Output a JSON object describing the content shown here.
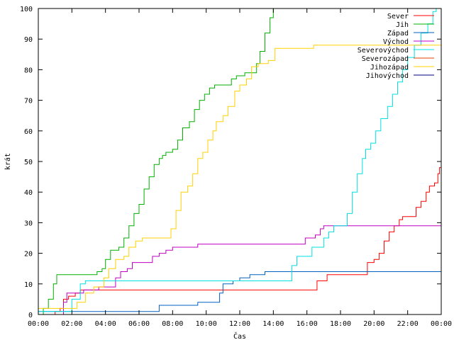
{
  "chart_data": {
    "type": "line",
    "title": "",
    "xlabel": "Čas",
    "ylabel": "krát",
    "xlim": [
      0,
      24
    ],
    "ylim": [
      0,
      100
    ],
    "x_ticks": [
      {
        "value": 0,
        "label": "00:00"
      },
      {
        "value": 2,
        "label": "02:00"
      },
      {
        "value": 4,
        "label": "04:00"
      },
      {
        "value": 6,
        "label": "06:00"
      },
      {
        "value": 8,
        "label": "08:00"
      },
      {
        "value": 10,
        "label": "10:00"
      },
      {
        "value": 12,
        "label": "12:00"
      },
      {
        "value": 14,
        "label": "14:00"
      },
      {
        "value": 16,
        "label": "16:00"
      },
      {
        "value": 18,
        "label": "18:00"
      },
      {
        "value": 20,
        "label": "20:00"
      },
      {
        "value": 22,
        "label": "22:00"
      },
      {
        "value": 24,
        "label": "00:00"
      }
    ],
    "y_ticks": [
      0,
      10,
      20,
      30,
      40,
      50,
      60,
      70,
      80,
      90,
      100
    ],
    "grid": false,
    "legend_position": "top-right",
    "series": [
      {
        "name": "Sever",
        "color": "#ff0000",
        "points": [
          [
            0,
            0
          ],
          [
            0.8,
            0
          ],
          [
            1.0,
            1
          ],
          [
            1.3,
            2
          ],
          [
            1.5,
            5
          ],
          [
            1.8,
            6
          ],
          [
            2.2,
            7
          ],
          [
            2.5,
            8
          ],
          [
            5.0,
            8
          ],
          [
            10.0,
            8
          ],
          [
            14.0,
            8
          ],
          [
            16.0,
            8
          ],
          [
            16.6,
            11
          ],
          [
            17.2,
            13
          ],
          [
            19.0,
            13
          ],
          [
            19.4,
            13
          ],
          [
            19.6,
            17
          ],
          [
            20.0,
            18
          ],
          [
            20.3,
            20
          ],
          [
            20.6,
            24
          ],
          [
            20.9,
            27
          ],
          [
            21.2,
            29
          ],
          [
            21.5,
            31
          ],
          [
            21.7,
            32
          ],
          [
            22.3,
            32
          ],
          [
            22.5,
            35
          ],
          [
            22.8,
            37
          ],
          [
            23.1,
            40
          ],
          [
            23.3,
            42
          ],
          [
            23.6,
            43
          ],
          [
            23.8,
            46
          ],
          [
            23.9,
            48
          ],
          [
            24,
            51
          ]
        ]
      },
      {
        "name": "Jih",
        "color": "#00b000",
        "points": [
          [
            0,
            0
          ],
          [
            0.3,
            2
          ],
          [
            0.6,
            5
          ],
          [
            0.9,
            10
          ],
          [
            1.1,
            13
          ],
          [
            2.0,
            13
          ],
          [
            3.2,
            13
          ],
          [
            3.5,
            14
          ],
          [
            3.8,
            15
          ],
          [
            4.0,
            18
          ],
          [
            4.3,
            21
          ],
          [
            4.8,
            22
          ],
          [
            5.1,
            25
          ],
          [
            5.4,
            29
          ],
          [
            5.7,
            33
          ],
          [
            6.0,
            36
          ],
          [
            6.3,
            41
          ],
          [
            6.6,
            45
          ],
          [
            6.9,
            49
          ],
          [
            7.2,
            51
          ],
          [
            7.4,
            52
          ],
          [
            7.6,
            53
          ],
          [
            8.0,
            54
          ],
          [
            8.3,
            57
          ],
          [
            8.6,
            61
          ],
          [
            9.0,
            63
          ],
          [
            9.3,
            67
          ],
          [
            9.6,
            70
          ],
          [
            9.9,
            72
          ],
          [
            10.2,
            74
          ],
          [
            10.5,
            75
          ],
          [
            11.2,
            75
          ],
          [
            11.5,
            77
          ],
          [
            11.8,
            78
          ],
          [
            12.3,
            79
          ],
          [
            12.8,
            79
          ],
          [
            13.0,
            82
          ],
          [
            13.2,
            86
          ],
          [
            13.5,
            92
          ],
          [
            13.8,
            97
          ],
          [
            14.0,
            100
          ]
        ]
      },
      {
        "name": "Západ",
        "color": "#0060c0",
        "points": [
          [
            0,
            1
          ],
          [
            3.0,
            1
          ],
          [
            6.0,
            1
          ],
          [
            7.1,
            1
          ],
          [
            7.2,
            3
          ],
          [
            8.5,
            3
          ],
          [
            9.5,
            4
          ],
          [
            10.6,
            4
          ],
          [
            10.8,
            7
          ],
          [
            11.0,
            10
          ],
          [
            11.6,
            11
          ],
          [
            12.0,
            12
          ],
          [
            12.6,
            13
          ],
          [
            13.0,
            13
          ],
          [
            13.5,
            14
          ],
          [
            16.0,
            14
          ],
          [
            20.0,
            14
          ],
          [
            24,
            14
          ]
        ]
      },
      {
        "name": "Východ",
        "color": "#c000c0",
        "points": [
          [
            0,
            0
          ],
          [
            1.3,
            0
          ],
          [
            1.5,
            4
          ],
          [
            1.7,
            7
          ],
          [
            2.2,
            7
          ],
          [
            2.7,
            8
          ],
          [
            3.2,
            8
          ],
          [
            3.6,
            9
          ],
          [
            4.1,
            9
          ],
          [
            4.6,
            12
          ],
          [
            4.9,
            14
          ],
          [
            5.3,
            15
          ],
          [
            5.6,
            17
          ],
          [
            6.5,
            17
          ],
          [
            6.8,
            19
          ],
          [
            7.2,
            20
          ],
          [
            7.6,
            21
          ],
          [
            8.0,
            22
          ],
          [
            9.0,
            22
          ],
          [
            9.5,
            23
          ],
          [
            12.0,
            23
          ],
          [
            14.0,
            23
          ],
          [
            15.5,
            23
          ],
          [
            15.9,
            25
          ],
          [
            16.5,
            26
          ],
          [
            16.8,
            28
          ],
          [
            17.0,
            29
          ],
          [
            20.0,
            29
          ],
          [
            24,
            29
          ]
        ]
      },
      {
        "name": "Severovýchod",
        "color": "#00e0e0",
        "points": [
          [
            0,
            1
          ],
          [
            1.5,
            1
          ],
          [
            2.0,
            5
          ],
          [
            2.5,
            10
          ],
          [
            2.8,
            11
          ],
          [
            5.0,
            11
          ],
          [
            10.0,
            11
          ],
          [
            14.8,
            11
          ],
          [
            15.1,
            16
          ],
          [
            15.4,
            19
          ],
          [
            16.0,
            19
          ],
          [
            16.3,
            22
          ],
          [
            16.8,
            22
          ],
          [
            17.0,
            25
          ],
          [
            17.3,
            27
          ],
          [
            17.6,
            29
          ],
          [
            17.8,
            29
          ],
          [
            18.0,
            29
          ],
          [
            18.4,
            33
          ],
          [
            18.7,
            40
          ],
          [
            19.0,
            46
          ],
          [
            19.3,
            51
          ],
          [
            19.5,
            54
          ],
          [
            19.8,
            56
          ],
          [
            20.1,
            60
          ],
          [
            20.4,
            64
          ],
          [
            20.8,
            68
          ],
          [
            21.1,
            72
          ],
          [
            21.4,
            76
          ],
          [
            21.7,
            80
          ],
          [
            22.0,
            84
          ],
          [
            22.4,
            88
          ],
          [
            22.8,
            92
          ],
          [
            23.2,
            95
          ],
          [
            23.5,
            99
          ],
          [
            23.7,
            100
          ]
        ]
      },
      {
        "name": "Severozápad",
        "color": "#e04000",
        "points": []
      },
      {
        "name": "Jihozápad",
        "color": "#ffd000",
        "points": [
          [
            0,
            2
          ],
          [
            0.8,
            2
          ],
          [
            1.2,
            2
          ],
          [
            1.8,
            2
          ],
          [
            2.3,
            4
          ],
          [
            2.8,
            7
          ],
          [
            3.3,
            9
          ],
          [
            3.9,
            12
          ],
          [
            4.2,
            15
          ],
          [
            4.6,
            18
          ],
          [
            5.1,
            19
          ],
          [
            5.4,
            22
          ],
          [
            5.8,
            24
          ],
          [
            6.2,
            25
          ],
          [
            7.5,
            25
          ],
          [
            7.9,
            28
          ],
          [
            8.2,
            34
          ],
          [
            8.5,
            40
          ],
          [
            8.9,
            42
          ],
          [
            9.2,
            46
          ],
          [
            9.5,
            51
          ],
          [
            9.8,
            53
          ],
          [
            10.1,
            57
          ],
          [
            10.4,
            60
          ],
          [
            10.6,
            63
          ],
          [
            11.0,
            65
          ],
          [
            11.3,
            68
          ],
          [
            11.7,
            73
          ],
          [
            12.0,
            75
          ],
          [
            12.4,
            77
          ],
          [
            12.7,
            81
          ],
          [
            13.1,
            82
          ],
          [
            13.7,
            83
          ],
          [
            14.1,
            87
          ],
          [
            14.5,
            87
          ],
          [
            16.0,
            87
          ],
          [
            16.4,
            88
          ],
          [
            20.0,
            88
          ],
          [
            24,
            88
          ]
        ]
      },
      {
        "name": "Jihovýchod",
        "color": "#000080",
        "points": []
      }
    ]
  }
}
